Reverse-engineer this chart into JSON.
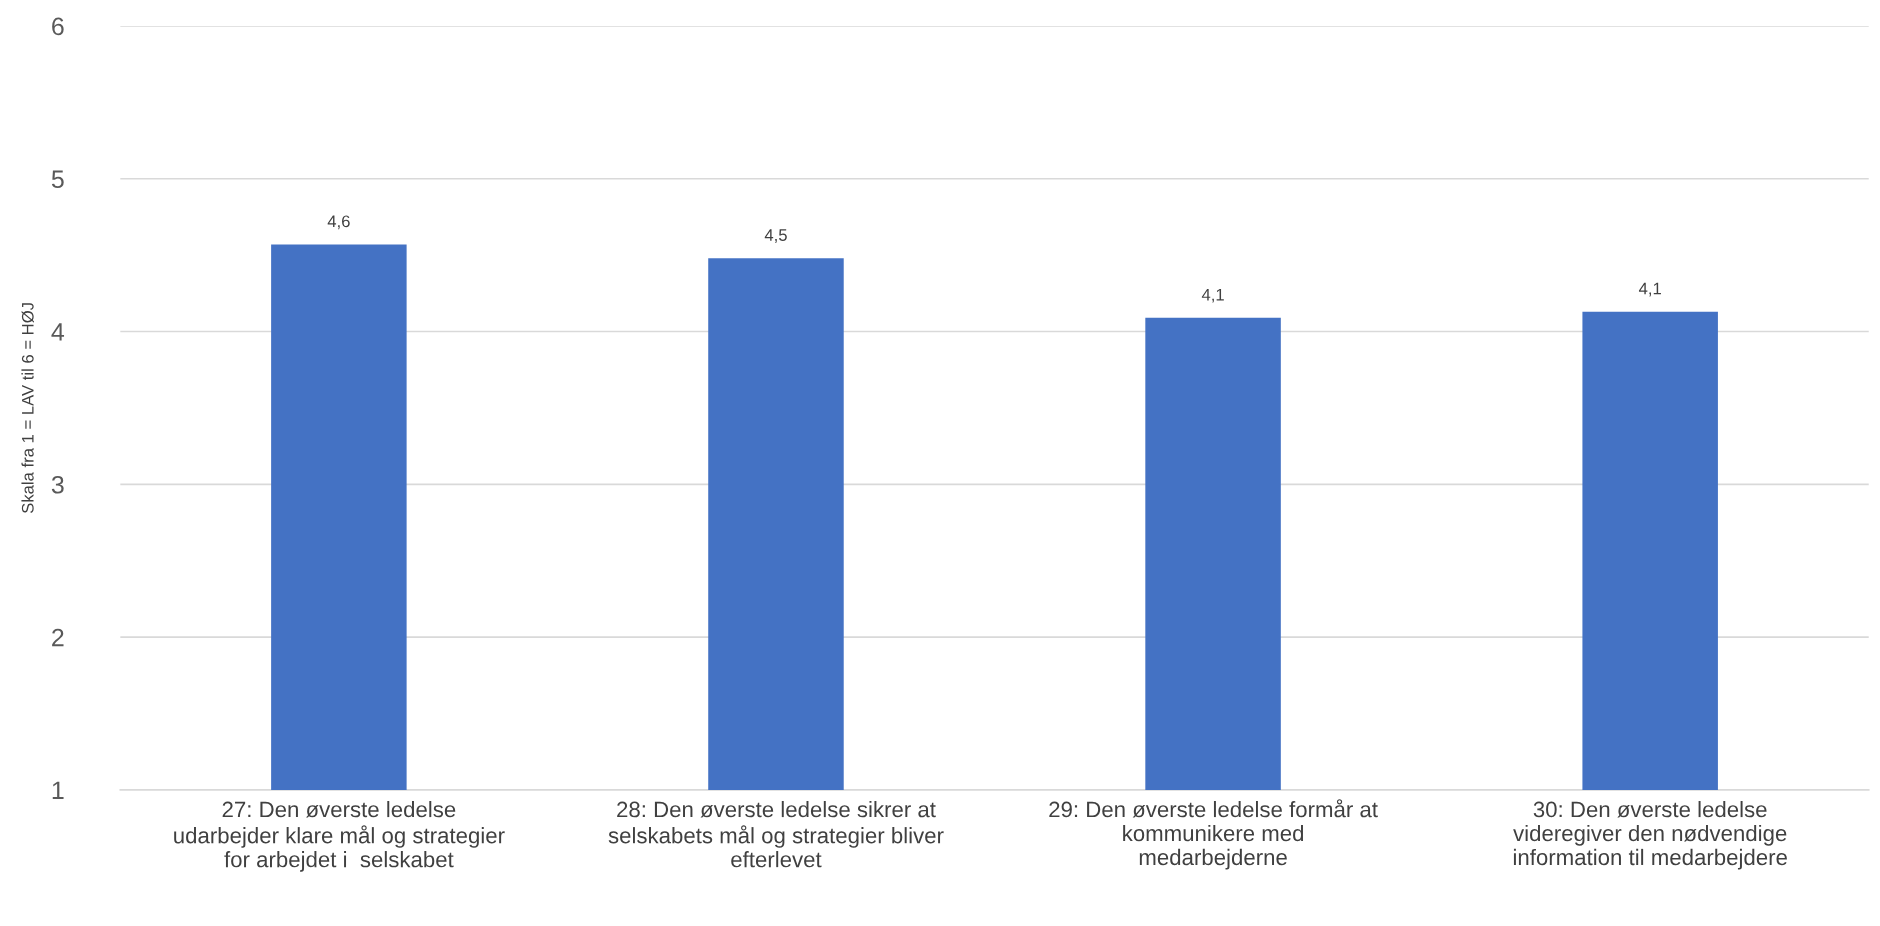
{
  "chart_data": {
    "type": "bar",
    "ylabel": "Skala fra 1 = LAV til 6 = HØJ",
    "categories": [
      "27: Den øverste ledelse\nudarbejder klare mål og strategier\nfor arbejdet i  selskabet",
      "28: Den øverste ledelse sikrer at\nselskabets mål og strategier bliver\nefterlevet",
      "29: Den øverste ledelse formår at\nkommunikere med\nmedarbejderne",
      "30: Den øverste ledelse\nvideregiver den nødvendige\ninformation til medarbejdere"
    ],
    "values": [
      4.57,
      4.48,
      4.09,
      4.13
    ],
    "value_labels": [
      "4,6",
      "4,5",
      "4,1",
      "4,1"
    ],
    "color": "#4472c4",
    "ylim": [
      1,
      6
    ],
    "yticks": [
      1,
      2,
      3,
      4,
      5,
      6
    ],
    "grid": "y",
    "legend": false
  }
}
